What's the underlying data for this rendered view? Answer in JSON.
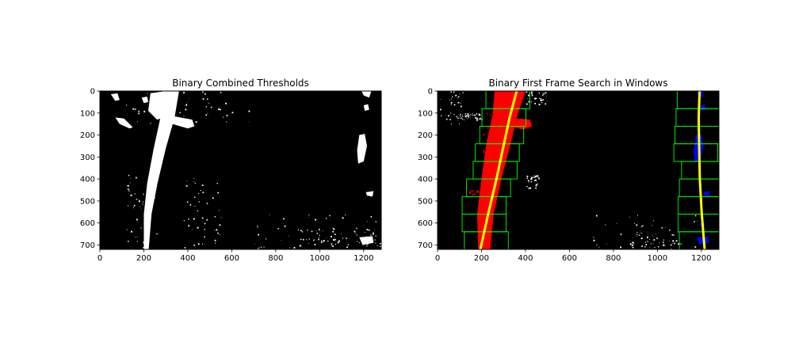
{
  "chart_data": [
    {
      "type": "image",
      "title": "Binary Combined Thresholds",
      "xlim": [
        0,
        1280
      ],
      "ylim": [
        720,
        0
      ],
      "xticks": [
        0,
        200,
        400,
        600,
        800,
        1000,
        1200
      ],
      "yticks": [
        0,
        100,
        200,
        300,
        400,
        500,
        600,
        700
      ],
      "colors": {
        "background": "#000000",
        "pixels": "#ffffff"
      },
      "lane_pixels": [
        {
          "name": "left-lane",
          "center_x": [
            210,
            240,
            290,
            330
          ],
          "y": [
            710,
            450,
            200,
            0
          ]
        },
        {
          "name": "right-lane-dash",
          "center_x": [
            1190
          ],
          "y": [
            260
          ]
        }
      ]
    },
    {
      "type": "image",
      "title": "Binary First Frame Search in Windows",
      "xlim": [
        0,
        1280
      ],
      "ylim": [
        720,
        0
      ],
      "xticks": [
        0,
        200,
        400,
        600,
        800,
        1000,
        1200
      ],
      "yticks": [
        0,
        100,
        200,
        300,
        400,
        500,
        600,
        700
      ],
      "colors": {
        "background": "#000000",
        "left_pixels": "#ff0000",
        "right_pixels": "#0000ff",
        "windows": "#00ff00",
        "fit": "#ffff00"
      },
      "search_windows": {
        "left": [
          {
            "x": [
              122,
              322
            ],
            "y": [
              640,
              720
            ]
          },
          {
            "x": [
              112,
              312
            ],
            "y": [
              560,
              640
            ]
          },
          {
            "x": [
              112,
              312
            ],
            "y": [
              480,
              560
            ]
          },
          {
            "x": [
              132,
              332
            ],
            "y": [
              400,
              480
            ]
          },
          {
            "x": [
              162,
              362
            ],
            "y": [
              320,
              400
            ]
          },
          {
            "x": [
              172,
              372
            ],
            "y": [
              240,
              320
            ]
          },
          {
            "x": [
              192,
              392
            ],
            "y": [
              160,
              240
            ]
          },
          {
            "x": [
              202,
              402
            ],
            "y": [
              80,
              160
            ]
          },
          {
            "x": [
              220,
              420
            ],
            "y": [
              0,
              80
            ]
          }
        ],
        "right": [
          {
            "x": [
              1100,
              1300
            ],
            "y": [
              640,
              720
            ]
          },
          {
            "x": [
              1095,
              1295
            ],
            "y": [
              560,
              640
            ]
          },
          {
            "x": [
              1095,
              1295
            ],
            "y": [
              480,
              560
            ]
          },
          {
            "x": [
              1100,
              1300
            ],
            "y": [
              400,
              480
            ]
          },
          {
            "x": [
              1110,
              1310
            ],
            "y": [
              320,
              400
            ]
          },
          {
            "x": [
              1075,
              1275
            ],
            "y": [
              240,
              320
            ]
          },
          {
            "x": [
              1080,
              1280
            ],
            "y": [
              160,
              240
            ]
          },
          {
            "x": [
              1085,
              1285
            ],
            "y": [
              80,
              160
            ]
          },
          {
            "x": [
              1090,
              1290
            ],
            "y": [
              0,
              80
            ]
          }
        ]
      },
      "fits": {
        "left": {
          "x": [
            195,
            230,
            268,
            300,
            328,
            360
          ],
          "y": [
            720,
            560,
            400,
            250,
            120,
            0
          ]
        },
        "right": {
          "x": [
            1215,
            1202,
            1193,
            1190,
            1188,
            1192
          ],
          "y": [
            720,
            560,
            400,
            250,
            120,
            0
          ]
        }
      }
    }
  ]
}
